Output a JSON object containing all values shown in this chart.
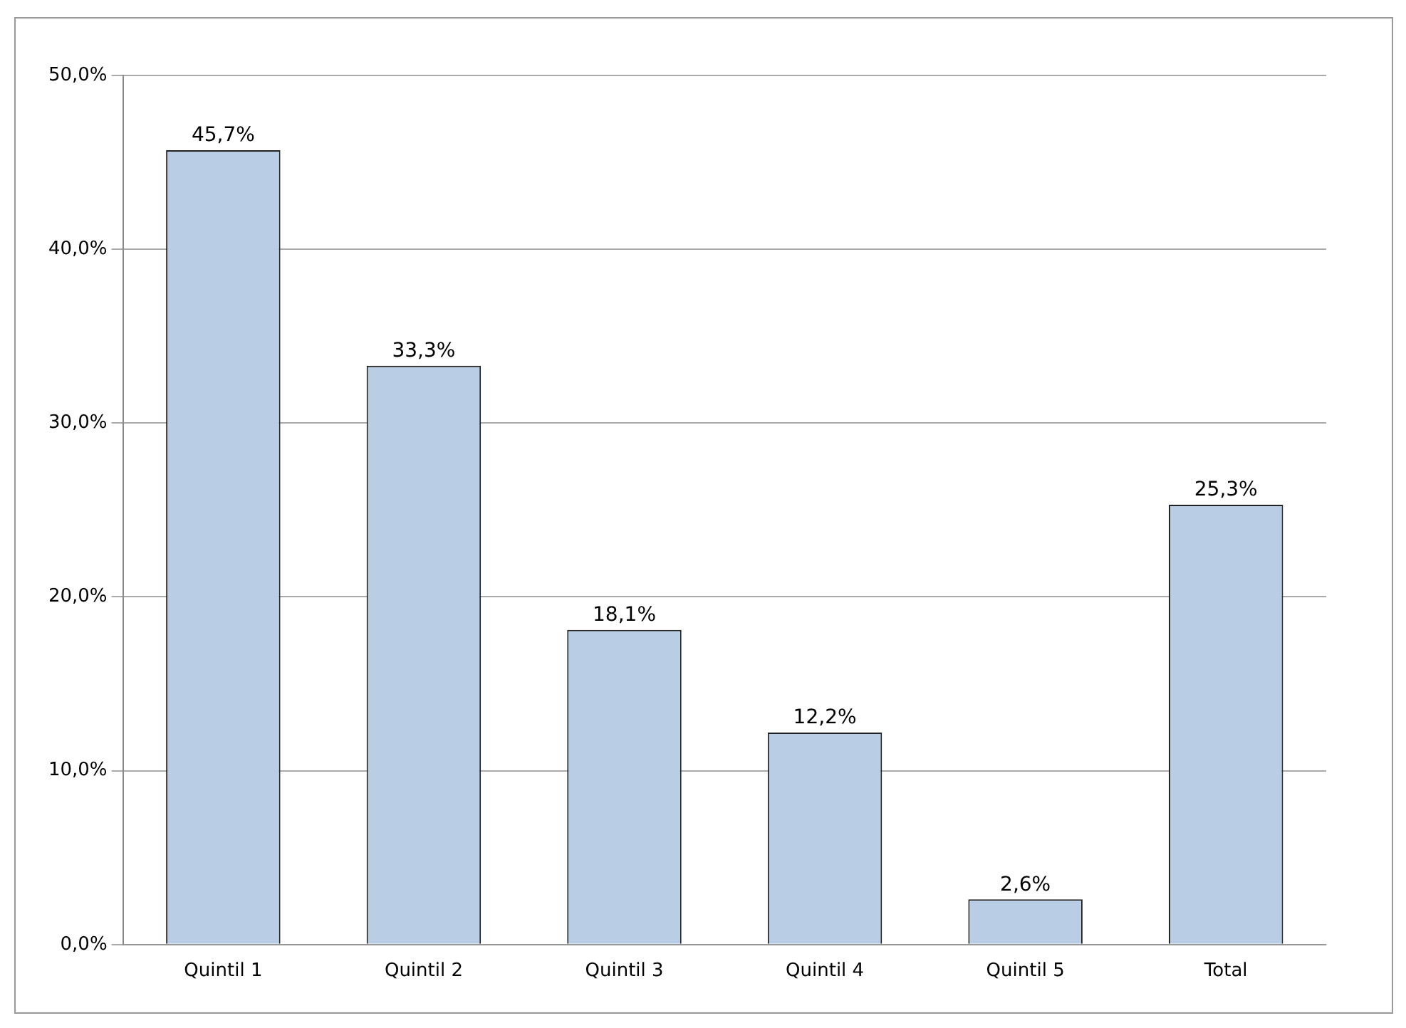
{
  "chart_data": {
    "type": "bar",
    "categories": [
      "Quintil 1",
      "Quintil 2",
      "Quintil 3",
      "Quintil 4",
      "Quintil 5",
      "Total"
    ],
    "values": [
      45.7,
      33.3,
      18.1,
      12.2,
      2.6,
      25.3
    ],
    "value_labels": [
      "45,7%",
      "33,3%",
      "18,1%",
      "12,2%",
      "2,6%",
      "25,3%"
    ],
    "color": "#b9cde5",
    "ylim": [
      0,
      50
    ],
    "yticks": [
      {
        "value": 0,
        "label": "0,0%"
      },
      {
        "value": 10,
        "label": "10,0%"
      },
      {
        "value": 20,
        "label": "20,0%"
      },
      {
        "value": 30,
        "label": "30,0%"
      },
      {
        "value": 40,
        "label": "40,0%"
      },
      {
        "value": 50,
        "label": "50,0%"
      }
    ],
    "grid": "y",
    "legend": false
  }
}
